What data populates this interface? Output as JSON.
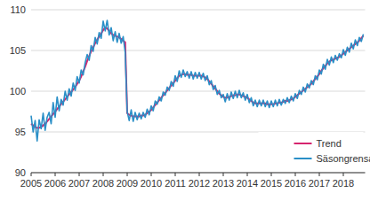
{
  "chart_data": {
    "type": "line",
    "categories": [
      "2005",
      null,
      null,
      null,
      null,
      null,
      null,
      null,
      null,
      null,
      null,
      null,
      "2006",
      null,
      null,
      null,
      null,
      null,
      null,
      null,
      null,
      null,
      null,
      null,
      "2007",
      null,
      null,
      null,
      null,
      null,
      null,
      null,
      null,
      null,
      null,
      null,
      "2008",
      null,
      null,
      null,
      null,
      null,
      null,
      null,
      null,
      null,
      null,
      null,
      "2009",
      null,
      null,
      null,
      null,
      null,
      null,
      null,
      null,
      null,
      null,
      null,
      "2010",
      null,
      null,
      null,
      null,
      null,
      null,
      null,
      null,
      null,
      null,
      null,
      "2011",
      null,
      null,
      null,
      null,
      null,
      null,
      null,
      null,
      null,
      null,
      null,
      "2012",
      null,
      null,
      null,
      null,
      null,
      null,
      null,
      null,
      null,
      null,
      null,
      "2013",
      null,
      null,
      null,
      null,
      null,
      null,
      null,
      null,
      null,
      null,
      null,
      "2014",
      null,
      null,
      null,
      null,
      null,
      null,
      null,
      null,
      null,
      null,
      null,
      "2015",
      null,
      null,
      null,
      null,
      null,
      null,
      null,
      null,
      null,
      null,
      null,
      "2016",
      null,
      null,
      null,
      null,
      null,
      null,
      null,
      null,
      null,
      null,
      null,
      "2017",
      null,
      null,
      null,
      null,
      null,
      null,
      null,
      null,
      null,
      null,
      null,
      "2018",
      null,
      null,
      null,
      null,
      null,
      null,
      null,
      null,
      null,
      null
    ],
    "series": [
      {
        "name": "Trend",
        "color": "#d6246e",
        "values": [
          96.0,
          95.8,
          95.6,
          95.5,
          95.5,
          95.6,
          95.8,
          96.0,
          96.3,
          96.6,
          96.9,
          97.2,
          97.5,
          97.8,
          98.1,
          98.4,
          98.7,
          99.0,
          99.3,
          99.6,
          99.9,
          100.2,
          100.5,
          100.9,
          101.3,
          101.8,
          102.4,
          103.0,
          103.7,
          104.3,
          104.9,
          105.4,
          105.9,
          106.3,
          106.7,
          107.1,
          107.5,
          107.8,
          107.7,
          107.4,
          107.1,
          106.9,
          106.8,
          106.7,
          106.6,
          106.4,
          106.2,
          106.0,
          97.3,
          97.1,
          97.0,
          96.9,
          96.9,
          96.9,
          96.9,
          97.0,
          97.0,
          97.1,
          97.3,
          97.5,
          97.7,
          98.0,
          98.3,
          98.6,
          98.9,
          99.2,
          99.5,
          99.8,
          100.1,
          100.4,
          100.7,
          101.0,
          101.3,
          101.6,
          101.9,
          102.0,
          102.1,
          102.1,
          102.0,
          102.0,
          102.0,
          101.9,
          101.9,
          101.9,
          101.9,
          101.9,
          101.8,
          101.7,
          101.5,
          101.2,
          100.9,
          100.6,
          100.3,
          100.0,
          99.7,
          99.5,
          99.3,
          99.2,
          99.2,
          99.3,
          99.4,
          99.5,
          99.5,
          99.6,
          99.6,
          99.5,
          99.4,
          99.3,
          99.2,
          99.0,
          98.8,
          98.6,
          98.5,
          98.5,
          98.5,
          98.5,
          98.5,
          98.5,
          98.4,
          98.4,
          98.4,
          98.4,
          98.5,
          98.5,
          98.6,
          98.6,
          98.7,
          98.8,
          98.8,
          98.9,
          99.0,
          99.1,
          99.3,
          99.5,
          99.7,
          99.9,
          100.1,
          100.3,
          100.5,
          100.7,
          100.9,
          101.2,
          101.5,
          101.8,
          102.1,
          102.5,
          102.8,
          103.1,
          103.4,
          103.6,
          103.8,
          103.9,
          104.0,
          104.1,
          104.2,
          104.4,
          104.6,
          104.8,
          105.0,
          105.2,
          105.4,
          105.6,
          105.8,
          106.0,
          106.2,
          106.5,
          106.8
        ]
      },
      {
        "name": "Säsongrensad",
        "color": "#2a8fc7",
        "values": [
          97.0,
          95.0,
          96.4,
          93.9,
          96.5,
          95.4,
          97.3,
          95.2,
          96.8,
          97.4,
          96.0,
          98.6,
          96.8,
          99.3,
          97.6,
          99.0,
          98.3,
          100.0,
          98.9,
          100.3,
          99.4,
          101.0,
          100.1,
          101.8,
          101.0,
          102.6,
          102.0,
          103.5,
          104.5,
          103.8,
          105.6,
          104.9,
          106.6,
          105.8,
          107.2,
          106.5,
          108.6,
          107.4,
          108.7,
          106.9,
          107.8,
          106.2,
          107.3,
          106.0,
          107.1,
          105.9,
          106.7,
          104.8,
          97.5,
          96.4,
          97.7,
          96.3,
          97.4,
          96.5,
          97.3,
          96.6,
          97.4,
          96.8,
          97.8,
          97.1,
          98.2,
          97.6,
          98.8,
          98.4,
          99.3,
          98.8,
          99.9,
          99.5,
          100.5,
          100.1,
          101.2,
          100.6,
          101.9,
          101.2,
          102.5,
          101.7,
          102.6,
          101.8,
          102.4,
          101.6,
          102.4,
          101.5,
          102.3,
          101.6,
          102.3,
          101.5,
          102.2,
          101.3,
          101.9,
          100.8,
          101.3,
          100.2,
          100.7,
          99.6,
          100.1,
          99.2,
          99.6,
          98.7,
          99.7,
          98.9,
          99.9,
          99.1,
          100.0,
          99.2,
          100.1,
          99.2,
          99.8,
          98.9,
          99.6,
          98.6,
          99.2,
          98.2,
          98.9,
          98.1,
          98.9,
          98.2,
          98.9,
          98.1,
          98.8,
          98.0,
          98.8,
          98.1,
          98.9,
          98.2,
          99.0,
          98.3,
          99.0,
          98.5,
          99.2,
          98.6,
          99.4,
          98.8,
          99.7,
          99.1,
          100.1,
          99.6,
          100.5,
          99.9,
          100.9,
          100.4,
          101.3,
          100.8,
          101.9,
          101.4,
          102.6,
          102.1,
          103.3,
          102.7,
          103.9,
          103.2,
          104.2,
          103.5,
          104.4,
          103.8,
          104.6,
          104.1,
          105.1,
          104.4,
          105.4,
          104.8,
          105.9,
          105.2,
          106.3,
          105.6,
          106.6,
          106.1,
          107.0
        ]
      }
    ],
    "ylim": [
      90,
      110
    ],
    "yticks": [
      90,
      95,
      100,
      105,
      110
    ],
    "grid": true,
    "legend": "lower right"
  }
}
